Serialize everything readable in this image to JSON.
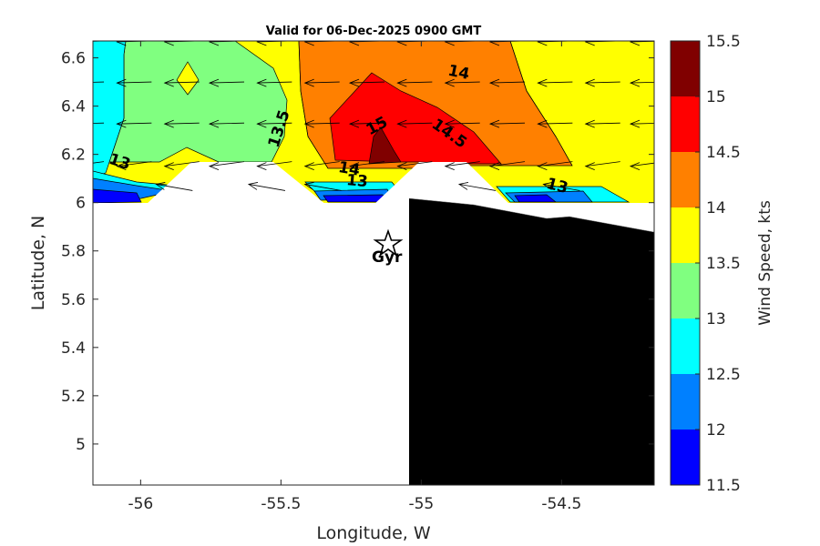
{
  "chart_data": {
    "type": "heatmap",
    "title": "Valid for 06-Dec-2025 0900 GMT",
    "xlabel": "Longitude, W",
    "ylabel": "Latitude, N",
    "xlim": [
      -56.17,
      -54.17
    ],
    "ylim": [
      4.83,
      6.67
    ],
    "xticks": [
      -56,
      -55.5,
      -55,
      -54.5
    ],
    "xtick_labels": [
      "-56",
      "-55.5",
      "-55",
      "-54.5"
    ],
    "yticks": [
      5,
      5.2,
      5.4,
      5.6,
      5.8,
      6,
      6.2,
      6.4,
      6.6
    ],
    "ytick_labels": [
      "5",
      "5.2",
      "5.4",
      "5.6",
      "5.8",
      "6",
      "6.2",
      "6.4",
      "6.6"
    ],
    "colorbar": {
      "label": "Wind Speed, kts",
      "range": [
        11.5,
        15.5
      ],
      "ticks": [
        11.5,
        12,
        12.5,
        13,
        13.5,
        14,
        14.5,
        15,
        15.5
      ],
      "tick_labels": [
        "11.5",
        "12",
        "12.5",
        "13",
        "13.5",
        "14",
        "14.5",
        "15",
        "15.5"
      ],
      "colors": [
        "#0000ff",
        "#0080ff",
        "#00ffff",
        "#80ff80",
        "#ffff00",
        "#ff8000",
        "#ff0000",
        "#800000"
      ]
    },
    "contour_labels": [
      {
        "text": "13",
        "x": -56.08,
        "y": 6.15
      },
      {
        "text": "13.5",
        "x": -55.49,
        "y": 6.3
      },
      {
        "text": "14",
        "x": -54.87,
        "y": 6.52
      },
      {
        "text": "15",
        "x": -55.15,
        "y": 6.3
      },
      {
        "text": "14.5",
        "x": -54.91,
        "y": 6.27
      },
      {
        "text": "14",
        "x": -55.26,
        "y": 6.12
      },
      {
        "text": "13",
        "x": -55.23,
        "y": 6.07
      },
      {
        "text": "13",
        "x": -54.52,
        "y": 6.05
      }
    ],
    "wind_grid": {
      "lons": [
        -56.17,
        -56.0,
        -55.83,
        -55.67,
        -55.5,
        -55.33,
        -55.17,
        -55.0,
        -54.83,
        -54.67,
        -54.5,
        -54.33,
        -54.17
      ],
      "lats": [
        6.17,
        6.33,
        6.5,
        6.67
      ],
      "direction": "from east (westward flow, slight southward component)"
    },
    "station": {
      "marker": "star",
      "label": "Gyr",
      "lon": -55.1,
      "lat": 5.83
    },
    "colors": {
      "land": "#000000",
      "no_data": "#ffffff"
    }
  }
}
